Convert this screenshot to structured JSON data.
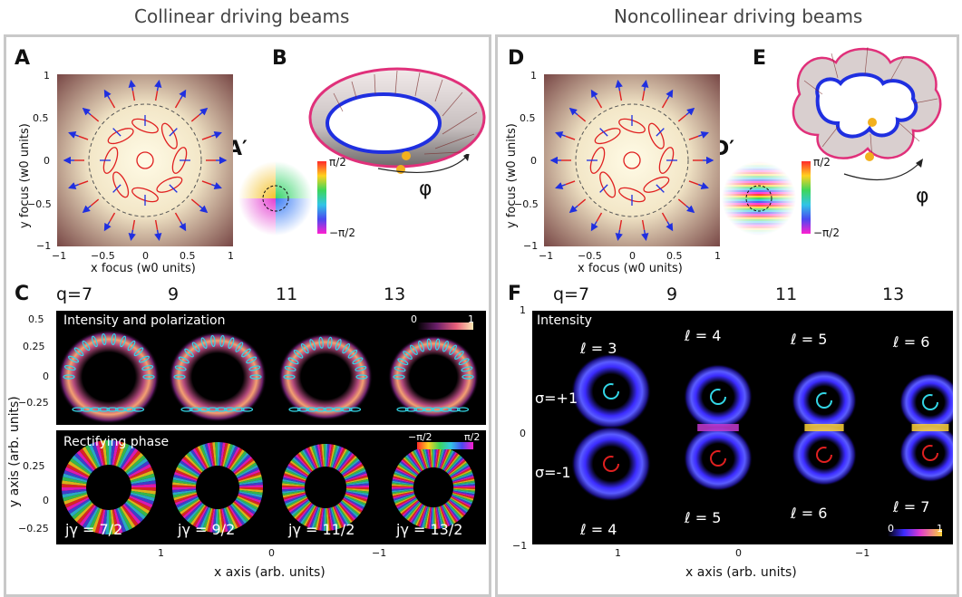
{
  "titles": {
    "left": "Collinear driving beams",
    "right": "Noncollinear driving beams"
  },
  "letters": {
    "A": "A",
    "B": "B",
    "Ap": "A′",
    "C": "C",
    "D": "D",
    "E": "E",
    "Dp": "D′",
    "F": "F"
  },
  "focus_axes": {
    "xlabel": "x focus (w0 units)",
    "ylabel": "y focus (w0 units)",
    "xticks": [
      "−1",
      "−0.5",
      "0",
      "0.5",
      "1"
    ],
    "yticks": [
      "1",
      "0.5",
      "0",
      "−0.5",
      "−1"
    ]
  },
  "phase_bar": {
    "top": "π/2",
    "bottom": "−π/2"
  },
  "phi": "φ",
  "c_panel": {
    "q_labels": [
      "q=7",
      "9",
      "11",
      "13"
    ],
    "top_title": "Intensity and polarization",
    "bottom_title": "Rectifying phase",
    "intensity_scale": [
      "0",
      "1"
    ],
    "phase_scale": [
      "−π/2",
      "π/2"
    ],
    "j_labels": [
      "jγ = 7/2",
      "jγ = 9/2",
      "jγ = 11/2",
      "jγ = 13/2"
    ],
    "yticks_top": [
      "0.5",
      "0.25",
      "0",
      "−0.25"
    ],
    "yticks_bottom": [
      "0.25",
      "0",
      "−0.25"
    ],
    "xticks": [
      "1",
      "0",
      "−1"
    ],
    "ylabel": "y axis (arb. units)",
    "xlabel": "x axis (arb. units)"
  },
  "f_panel": {
    "q_labels": [
      "q=7",
      "9",
      "11",
      "13"
    ],
    "title": "Intensity",
    "l_top": [
      "ℓ = 3",
      "ℓ = 4",
      "ℓ = 5",
      "ℓ = 6"
    ],
    "l_bottom": [
      "ℓ = 4",
      "ℓ = 5",
      "ℓ = 6",
      "ℓ = 7"
    ],
    "sigma_plus": "σ=+1",
    "sigma_minus": "σ=-1",
    "scale": [
      "0",
      "1"
    ],
    "yticks": [
      "1",
      "0",
      "−1"
    ],
    "xticks": [
      "1",
      "0",
      "−1"
    ],
    "xlabel": "x axis (arb. units)"
  },
  "colors": {
    "frame": "#c9c9c9",
    "arrow_blue": "#1f2fe0",
    "arrow_red": "#e02020",
    "cyan": "#33d6e6"
  }
}
